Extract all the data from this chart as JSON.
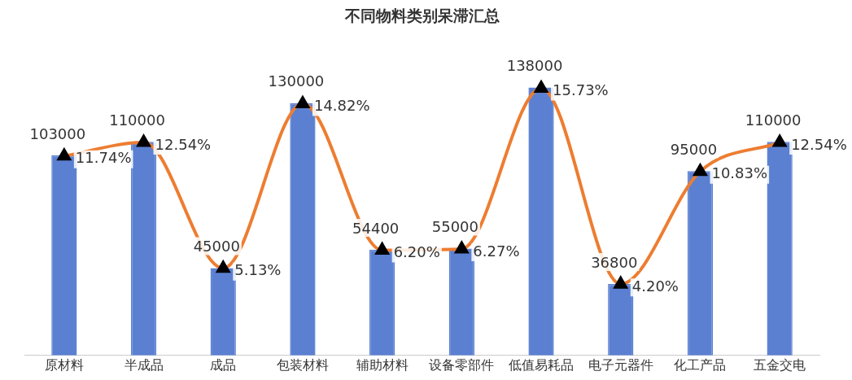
{
  "chart_data": {
    "type": "bar",
    "title": "不同物料类别呆滞汇总",
    "categories": [
      "原材料",
      "半成品",
      "成品",
      "包装材料",
      "辅助材料",
      "设备零部件",
      "低值易耗品",
      "电子元器件",
      "化工产品",
      "五金交电"
    ],
    "series": [
      {
        "color": "#5b80d2",
        "values": [
          103000,
          110000,
          45000,
          130000,
          54400,
          55000,
          138000,
          36800,
          95000,
          110000
        ]
      },
      {
        "type": "line",
        "axis": "y2",
        "color": "#ed7d31",
        "marker": "triangle",
        "values": [
          11.74,
          12.54,
          5.13,
          14.82,
          6.2,
          6.27,
          15.73,
          4.2,
          10.83,
          12.54
        ],
        "value_labels": [
          "11.74%",
          "12.54%",
          "5.13%",
          "14.82%",
          "6.20%",
          "6.27%",
          "15.73%",
          "4.20%",
          "10.83%",
          "12.54%"
        ]
      }
    ],
    "data_labels": true,
    "tick_labels": "x",
    "legend": false,
    "grid": false
  }
}
